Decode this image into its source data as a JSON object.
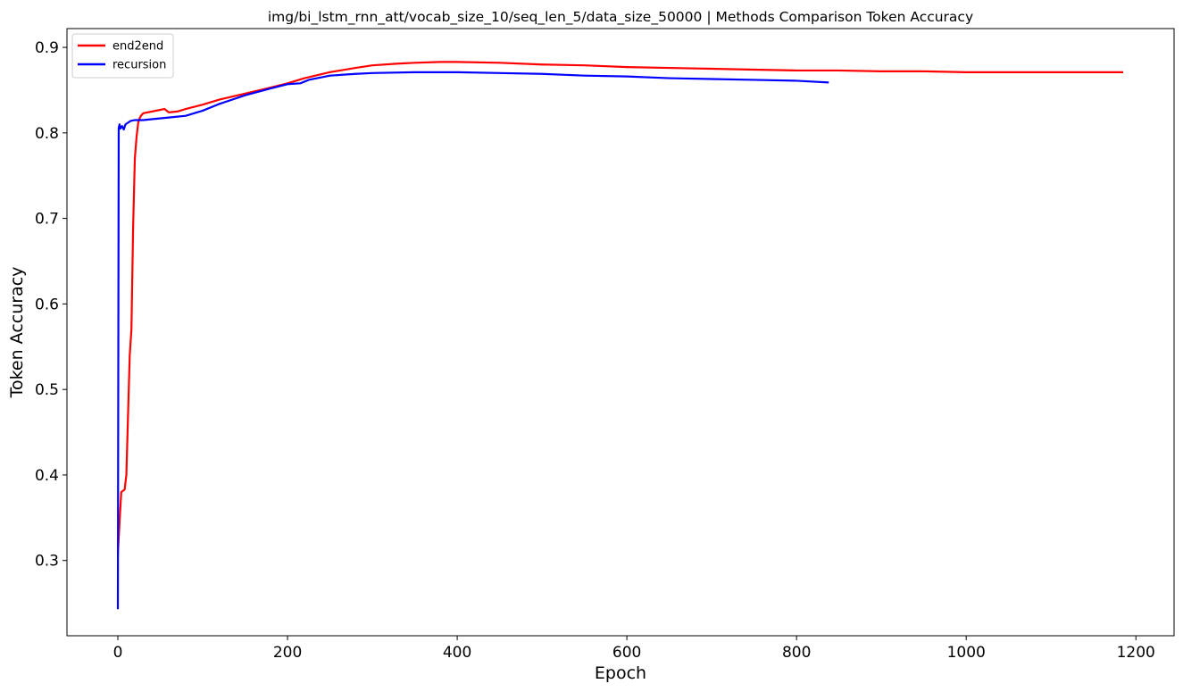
{
  "chart_data": {
    "type": "line",
    "title": "img/bi_lstm_rnn_att/vocab_size_10/seq_len_5/data_size_50000 | Methods Comparison Token Accuracy",
    "xlabel": "Epoch",
    "ylabel": "Token Accuracy",
    "xlim": [
      -60,
      1245
    ],
    "ylim": [
      0.212,
      0.922
    ],
    "xticks": [
      0,
      200,
      400,
      600,
      800,
      1000,
      1200
    ],
    "yticks": [
      0.3,
      0.4,
      0.5,
      0.6,
      0.7,
      0.8,
      0.9
    ],
    "xtick_labels": [
      "0",
      "200",
      "400",
      "600",
      "800",
      "1000",
      "1200"
    ],
    "ytick_labels": [
      "0.3",
      "0.4",
      "0.5",
      "0.6",
      "0.7",
      "0.8",
      "0.9"
    ],
    "grid": false,
    "legend_position": "top-left",
    "series": [
      {
        "name": "end2end",
        "color": "#ff0000",
        "x": [
          0,
          2,
          4,
          8,
          10,
          12,
          14,
          16,
          18,
          20,
          22,
          24,
          26,
          28,
          30,
          35,
          40,
          50,
          55,
          60,
          70,
          80,
          100,
          120,
          150,
          180,
          200,
          220,
          250,
          280,
          300,
          330,
          350,
          380,
          400,
          450,
          500,
          550,
          600,
          650,
          700,
          750,
          800,
          850,
          900,
          950,
          1000,
          1050,
          1100,
          1150,
          1185
        ],
        "values": [
          0.308,
          0.345,
          0.38,
          0.383,
          0.4,
          0.47,
          0.54,
          0.57,
          0.69,
          0.77,
          0.795,
          0.812,
          0.818,
          0.821,
          0.823,
          0.824,
          0.825,
          0.827,
          0.828,
          0.824,
          0.825,
          0.828,
          0.833,
          0.839,
          0.846,
          0.853,
          0.858,
          0.864,
          0.871,
          0.876,
          0.879,
          0.881,
          0.882,
          0.883,
          0.883,
          0.882,
          0.88,
          0.879,
          0.877,
          0.876,
          0.875,
          0.874,
          0.873,
          0.873,
          0.872,
          0.872,
          0.871,
          0.871,
          0.871,
          0.871,
          0.871
        ]
      },
      {
        "name": "recursion",
        "color": "#0000ff",
        "x": [
          0,
          1,
          2,
          3,
          5,
          7,
          9,
          12,
          15,
          20,
          30,
          40,
          60,
          80,
          100,
          120,
          150,
          180,
          200,
          215,
          225,
          250,
          280,
          300,
          350,
          400,
          450,
          500,
          550,
          600,
          650,
          700,
          750,
          800,
          838
        ],
        "values": [
          0.243,
          0.806,
          0.81,
          0.805,
          0.808,
          0.804,
          0.81,
          0.812,
          0.814,
          0.815,
          0.815,
          0.816,
          0.818,
          0.82,
          0.826,
          0.834,
          0.844,
          0.852,
          0.857,
          0.858,
          0.862,
          0.867,
          0.869,
          0.87,
          0.871,
          0.871,
          0.87,
          0.869,
          0.867,
          0.866,
          0.864,
          0.863,
          0.862,
          0.861,
          0.859
        ]
      }
    ]
  }
}
